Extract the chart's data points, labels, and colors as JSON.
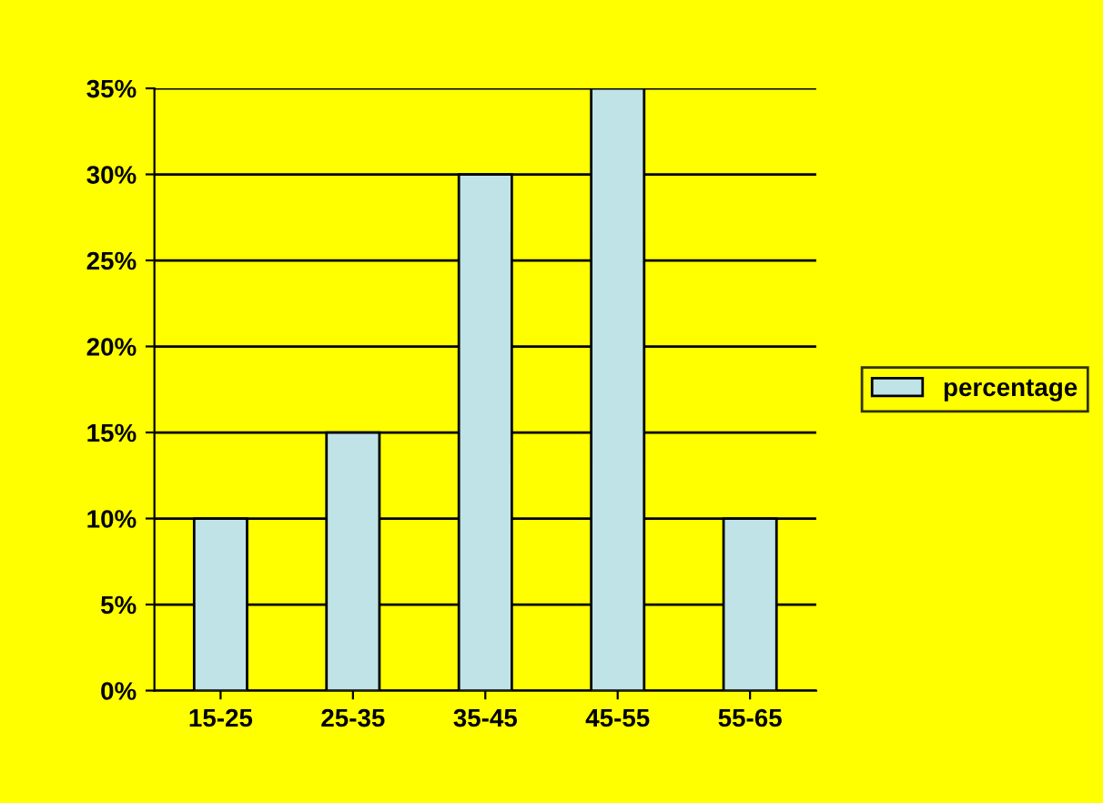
{
  "chart_data": {
    "type": "bar",
    "categories": [
      "15-25",
      "25-35",
      "35-45",
      "45-55",
      "55-65"
    ],
    "series": [
      {
        "name": "percentage",
        "color": "#bfe3e6",
        "values": [
          10,
          15,
          30,
          35,
          10
        ]
      }
    ],
    "ylim": [
      0,
      35
    ],
    "yticks": [
      {
        "value": 0,
        "label": "0%"
      },
      {
        "value": 5,
        "label": "5%"
      },
      {
        "value": 10,
        "label": "10%"
      },
      {
        "value": 15,
        "label": "15%"
      },
      {
        "value": 20,
        "label": "20%"
      },
      {
        "value": 25,
        "label": "25%"
      },
      {
        "value": 30,
        "label": "30%"
      },
      {
        "value": 35,
        "label": "35%"
      }
    ],
    "grid": "y",
    "legend": "right"
  }
}
